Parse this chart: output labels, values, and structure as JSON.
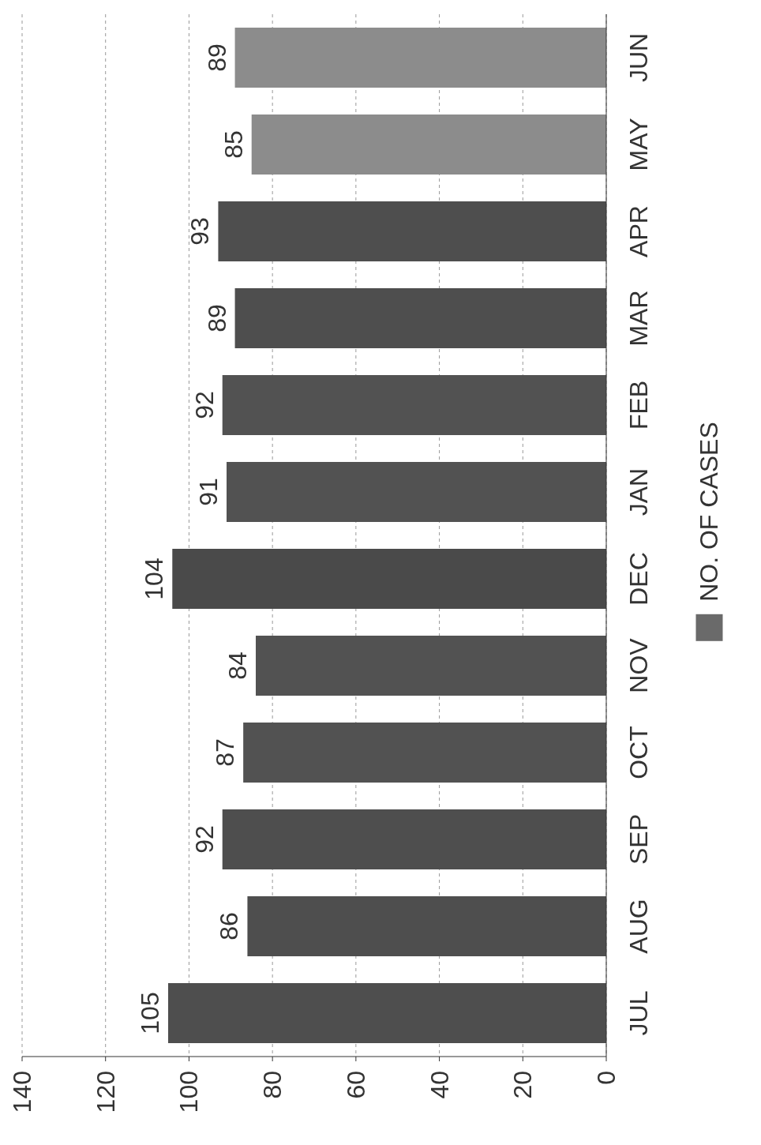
{
  "chart_data": {
    "type": "bar",
    "orientation": "horizontal",
    "categories": [
      "JUN",
      "MAY",
      "APR",
      "MAR",
      "FEB",
      "JAN",
      "DEC",
      "NOV",
      "OCT",
      "SEP",
      "AUG",
      "JUL"
    ],
    "series": [
      {
        "name": "NO. OF CASES",
        "color": "#6a6a6a",
        "colors": [
          "#8c8c8c",
          "#8c8c8c",
          "#4e4e4e",
          "#4e4e4e",
          "#525252",
          "#525252",
          "#4a4a4a",
          "#525252",
          "#525252",
          "#4e4e4e",
          "#4e4e4e",
          "#4e4e4e"
        ],
        "values": [
          89,
          85,
          93,
          89,
          92,
          91,
          104,
          84,
          87,
          92,
          86,
          105
        ]
      }
    ],
    "xlim": [
      140,
      0
    ],
    "xticks": [
      0,
      20,
      40,
      60,
      80,
      100,
      120,
      140
    ],
    "grid": "x",
    "legend": "right",
    "data_labels": true
  }
}
